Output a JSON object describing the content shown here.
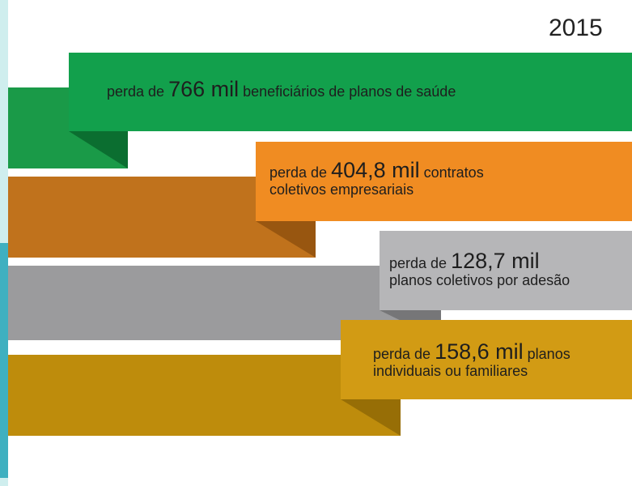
{
  "header": {
    "year": "2015"
  },
  "items": [
    {
      "prefix": "perda de",
      "value": "766 mil",
      "suffix": "beneficiários de planos de saúde"
    },
    {
      "prefix": "perda de",
      "value": "404,8 mil",
      "suffix": "contratos",
      "line2": "coletivos empresariais"
    },
    {
      "prefix": "perda de",
      "value": "128,7 mil",
      "line2": "planos coletivos por adesão"
    },
    {
      "prefix": "perda de",
      "value": "158,6 mil",
      "suffix": "planos",
      "line2": "individuais ou familiares"
    }
  ]
}
